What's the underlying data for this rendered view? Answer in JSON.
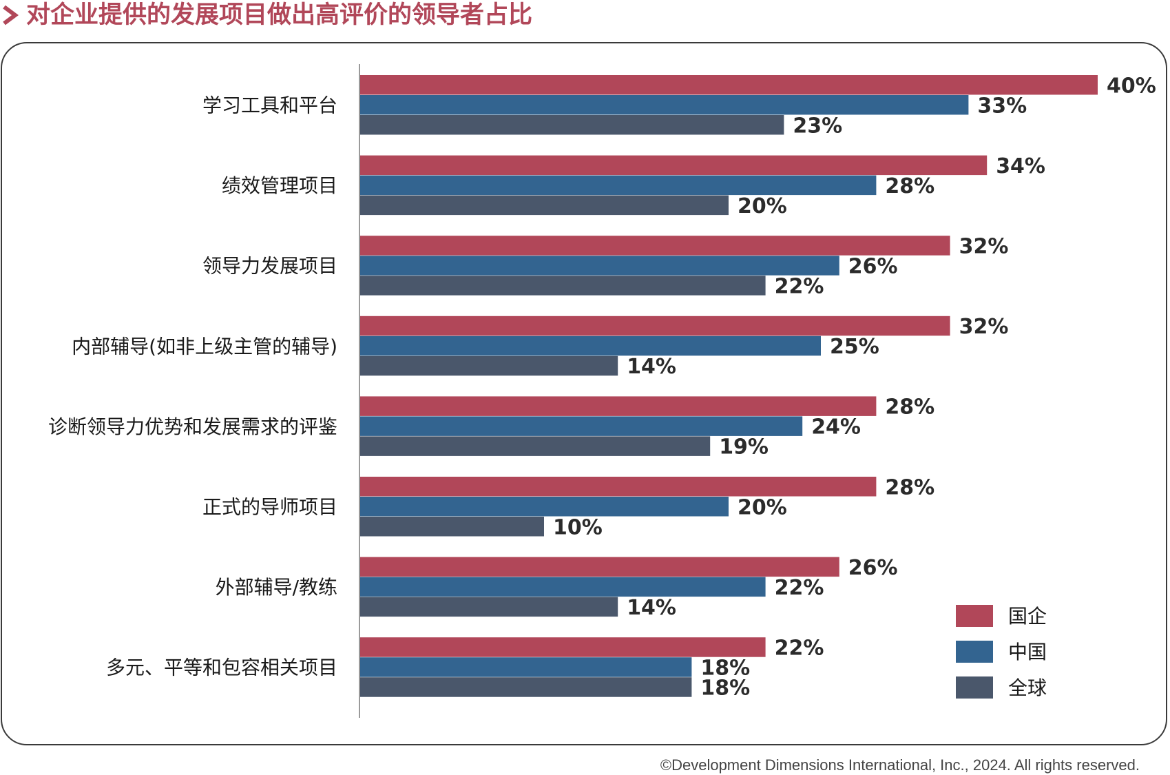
{
  "header": {
    "title": "对企业提供的发展项目做出高评价的领导者占比",
    "accent_color": "#b14759",
    "icon": "chevron-right-icon"
  },
  "chart_data": {
    "type": "bar",
    "orientation": "horizontal",
    "title": "对企业提供的发展项目做出高评价的领导者占比",
    "categories": [
      "学习工具和平台",
      "绩效管理项目",
      "领导力发展项目",
      "内部辅导(如非上级主管的辅导)",
      "诊断领导力优势和发展需求的评鉴",
      "正式的导师项目",
      "外部辅导/教练",
      "多元、平等和包容相关项目"
    ],
    "series": [
      {
        "name": "国企",
        "color": "#b14759",
        "values": [
          40,
          34,
          32,
          32,
          28,
          28,
          26,
          22
        ]
      },
      {
        "name": "中国",
        "color": "#336490",
        "values": [
          33,
          28,
          26,
          25,
          24,
          20,
          22,
          18
        ]
      },
      {
        "name": "全球",
        "color": "#4a576b",
        "values": [
          23,
          20,
          22,
          14,
          19,
          10,
          14,
          18
        ]
      }
    ],
    "value_suffix": "%",
    "xlim": [
      0,
      40
    ],
    "grid": false,
    "legend_position": "bottom-right"
  },
  "footer": {
    "copyright": "©Development Dimensions International, Inc., 2024. All rights reserved."
  }
}
